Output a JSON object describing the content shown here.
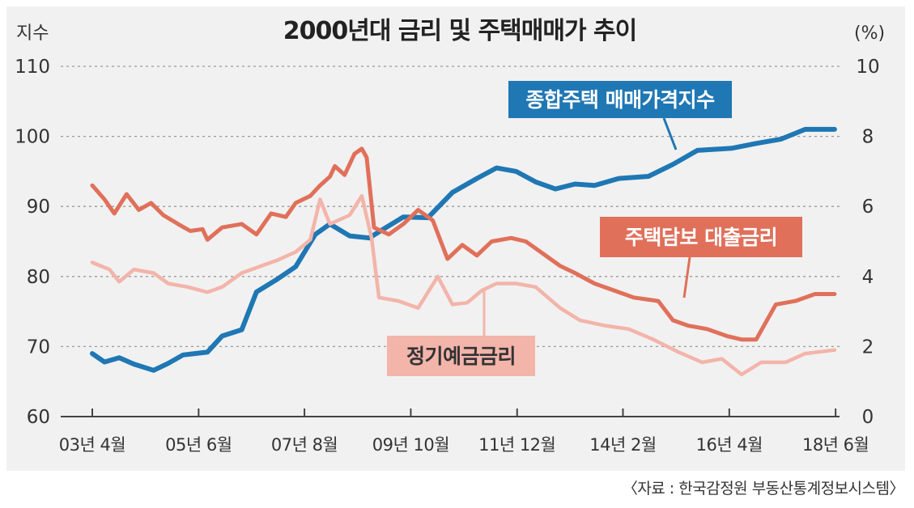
{
  "chart_data": {
    "type": "line",
    "title": "2000년대 금리 및 주택매매가 추이",
    "ylabel_left": "지수",
    "ylabel_right": "(%)",
    "ylim_left": [
      60,
      110
    ],
    "ylim_right": [
      0,
      10
    ],
    "yticks_left": [
      "60",
      "70",
      "80",
      "90",
      "100",
      "110"
    ],
    "yticks_right": [
      "0",
      "2",
      "4",
      "6",
      "8",
      "10"
    ],
    "ytick_values_left": [
      60,
      70,
      80,
      90,
      100,
      110
    ],
    "xlim": [
      2003.25,
      2018.5
    ],
    "xticks": [
      {
        "label": "03년 4월",
        "t": 2003.25
      },
      {
        "label": "05년 6월",
        "t": 2005.42
      },
      {
        "label": "07년 8월",
        "t": 2007.58
      },
      {
        "label": "09년 10월",
        "t": 2009.75
      },
      {
        "label": "11년 12월",
        "t": 2011.92
      },
      {
        "label": "14년 2월",
        "t": 2014.08
      },
      {
        "label": "16년 4월",
        "t": 2016.25
      },
      {
        "label": "18년 6월",
        "t": 2018.42
      }
    ],
    "grid": true,
    "series": [
      {
        "name": "종합주택 매매가격지수",
        "axis": "left",
        "color": "#1f77b4",
        "points": [
          [
            2003.25,
            69.0
          ],
          [
            2003.5,
            67.8
          ],
          [
            2003.8,
            68.4
          ],
          [
            2004.1,
            67.5
          ],
          [
            2004.5,
            66.6
          ],
          [
            2004.8,
            67.6
          ],
          [
            2005.1,
            68.8
          ],
          [
            2005.6,
            69.2
          ],
          [
            2005.9,
            71.5
          ],
          [
            2006.3,
            72.4
          ],
          [
            2006.6,
            77.8
          ],
          [
            2007.0,
            79.5
          ],
          [
            2007.4,
            81.4
          ],
          [
            2007.8,
            86.0
          ],
          [
            2008.1,
            87.5
          ],
          [
            2008.5,
            85.8
          ],
          [
            2008.9,
            85.5
          ],
          [
            2009.2,
            86.8
          ],
          [
            2009.6,
            88.5
          ],
          [
            2010.1,
            88.4
          ],
          [
            2010.6,
            92.0
          ],
          [
            2011.1,
            94.0
          ],
          [
            2011.5,
            95.5
          ],
          [
            2011.9,
            95.0
          ],
          [
            2012.3,
            93.5
          ],
          [
            2012.7,
            92.5
          ],
          [
            2013.1,
            93.2
          ],
          [
            2013.5,
            93.0
          ],
          [
            2014.0,
            94.0
          ],
          [
            2014.6,
            94.3
          ],
          [
            2015.1,
            96.0
          ],
          [
            2015.6,
            98.0
          ],
          [
            2016.3,
            98.3
          ],
          [
            2016.8,
            99.0
          ],
          [
            2017.3,
            99.6
          ],
          [
            2017.8,
            101.0
          ],
          [
            2018.4,
            101.0
          ]
        ]
      },
      {
        "name": "주택담보 대출금리",
        "axis": "right",
        "color": "#e0705a",
        "points": [
          [
            2003.25,
            6.6
          ],
          [
            2003.5,
            6.2
          ],
          [
            2003.7,
            5.8
          ],
          [
            2003.95,
            6.35
          ],
          [
            2004.2,
            5.9
          ],
          [
            2004.45,
            6.1
          ],
          [
            2004.7,
            5.75
          ],
          [
            2005.0,
            5.5
          ],
          [
            2005.25,
            5.3
          ],
          [
            2005.5,
            5.35
          ],
          [
            2005.6,
            5.05
          ],
          [
            2005.9,
            5.4
          ],
          [
            2006.3,
            5.5
          ],
          [
            2006.6,
            5.2
          ],
          [
            2006.9,
            5.8
          ],
          [
            2007.2,
            5.7
          ],
          [
            2007.4,
            6.1
          ],
          [
            2007.7,
            6.3
          ],
          [
            2007.9,
            6.6
          ],
          [
            2008.1,
            6.85
          ],
          [
            2008.2,
            7.15
          ],
          [
            2008.4,
            6.9
          ],
          [
            2008.6,
            7.5
          ],
          [
            2008.75,
            7.65
          ],
          [
            2008.85,
            7.4
          ],
          [
            2009.0,
            5.4
          ],
          [
            2009.3,
            5.2
          ],
          [
            2009.6,
            5.5
          ],
          [
            2009.9,
            5.9
          ],
          [
            2010.2,
            5.6
          ],
          [
            2010.5,
            4.5
          ],
          [
            2010.8,
            4.9
          ],
          [
            2011.1,
            4.6
          ],
          [
            2011.4,
            5.0
          ],
          [
            2011.8,
            5.1
          ],
          [
            2012.1,
            5.0
          ],
          [
            2012.5,
            4.6
          ],
          [
            2012.8,
            4.3
          ],
          [
            2013.1,
            4.1
          ],
          [
            2013.5,
            3.8
          ],
          [
            2013.9,
            3.6
          ],
          [
            2014.3,
            3.4
          ],
          [
            2014.8,
            3.3
          ],
          [
            2015.1,
            2.75
          ],
          [
            2015.4,
            2.6
          ],
          [
            2015.8,
            2.5
          ],
          [
            2016.2,
            2.3
          ],
          [
            2016.5,
            2.2
          ],
          [
            2016.8,
            2.2
          ],
          [
            2017.2,
            3.2
          ],
          [
            2017.6,
            3.3
          ],
          [
            2018.0,
            3.5
          ],
          [
            2018.4,
            3.5
          ]
        ]
      },
      {
        "name": "정기예금금리",
        "axis": "right",
        "color": "#f3b4aa",
        "points": [
          [
            2003.25,
            4.4
          ],
          [
            2003.6,
            4.2
          ],
          [
            2003.8,
            3.85
          ],
          [
            2004.1,
            4.2
          ],
          [
            2004.5,
            4.1
          ],
          [
            2004.8,
            3.8
          ],
          [
            2005.2,
            3.7
          ],
          [
            2005.6,
            3.55
          ],
          [
            2005.9,
            3.7
          ],
          [
            2006.3,
            4.1
          ],
          [
            2006.7,
            4.3
          ],
          [
            2007.0,
            4.45
          ],
          [
            2007.4,
            4.7
          ],
          [
            2007.7,
            5.05
          ],
          [
            2007.9,
            6.2
          ],
          [
            2008.1,
            5.5
          ],
          [
            2008.5,
            5.75
          ],
          [
            2008.75,
            6.3
          ],
          [
            2008.95,
            5.1
          ],
          [
            2009.1,
            3.4
          ],
          [
            2009.5,
            3.3
          ],
          [
            2009.9,
            3.1
          ],
          [
            2010.3,
            4.0
          ],
          [
            2010.6,
            3.2
          ],
          [
            2010.9,
            3.25
          ],
          [
            2011.2,
            3.6
          ],
          [
            2011.5,
            3.8
          ],
          [
            2011.9,
            3.8
          ],
          [
            2012.3,
            3.7
          ],
          [
            2012.8,
            3.1
          ],
          [
            2013.2,
            2.75
          ],
          [
            2013.7,
            2.6
          ],
          [
            2014.2,
            2.5
          ],
          [
            2014.7,
            2.2
          ],
          [
            2015.2,
            1.85
          ],
          [
            2015.7,
            1.55
          ],
          [
            2016.1,
            1.65
          ],
          [
            2016.5,
            1.2
          ],
          [
            2016.9,
            1.55
          ],
          [
            2017.4,
            1.55
          ],
          [
            2017.8,
            1.8
          ],
          [
            2018.4,
            1.9
          ]
        ]
      }
    ],
    "annotations": [
      {
        "text": "종합주택 매매가격지수",
        "series": "종합주택 매매가격지수",
        "box_color": "#1f77b4",
        "text_color": "#ffffff"
      },
      {
        "text": "주택담보 대출금리",
        "series": "주택담보 대출금리",
        "box_color": "#e0705a",
        "text_color": "#ffffff"
      },
      {
        "text": "정기예금금리",
        "series": "정기예금금리",
        "box_color": "#f3b4aa",
        "text_color": "#333333"
      }
    ],
    "source": "〈자료 : 한국감정원 부동산통계정보시스템〉"
  }
}
